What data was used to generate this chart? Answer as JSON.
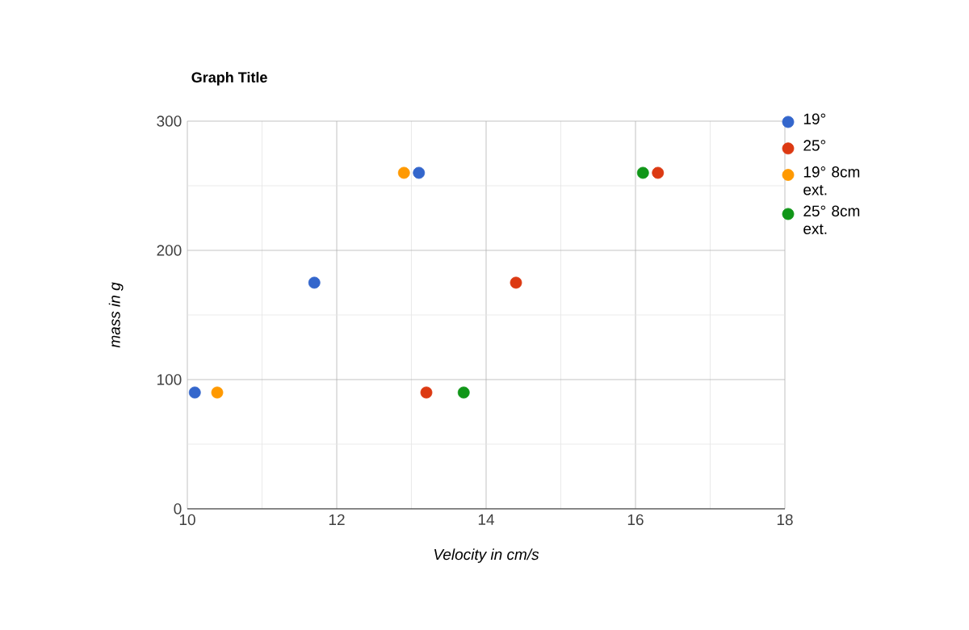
{
  "chart_data": {
    "type": "scatter",
    "title": "Graph Title",
    "xlabel": "Velocity in cm/s",
    "ylabel": "mass in g",
    "xlim": [
      10,
      18
    ],
    "xticks": [
      10,
      12,
      14,
      16,
      18
    ],
    "ylim": [
      0,
      300
    ],
    "yticks": [
      0,
      100,
      200,
      300
    ],
    "grid": true,
    "legend": "right",
    "marker": "circle",
    "series": [
      {
        "name": "19°",
        "color": "#3366cc",
        "x": [
          10.1,
          11.7,
          13.1
        ],
        "values": [
          90,
          175,
          260
        ]
      },
      {
        "name": "25°",
        "color": "#dc3912",
        "x": [
          13.2,
          14.4,
          16.3
        ],
        "values": [
          90,
          175,
          260
        ]
      },
      {
        "name": "19° 8cm ext.",
        "color": "#ff9900",
        "x": [
          10.4,
          12.9
        ],
        "values": [
          90,
          260
        ]
      },
      {
        "name": "25° 8cm ext.",
        "color": "#109618",
        "x": [
          13.7,
          16.1
        ],
        "values": [
          90,
          260
        ]
      }
    ]
  }
}
